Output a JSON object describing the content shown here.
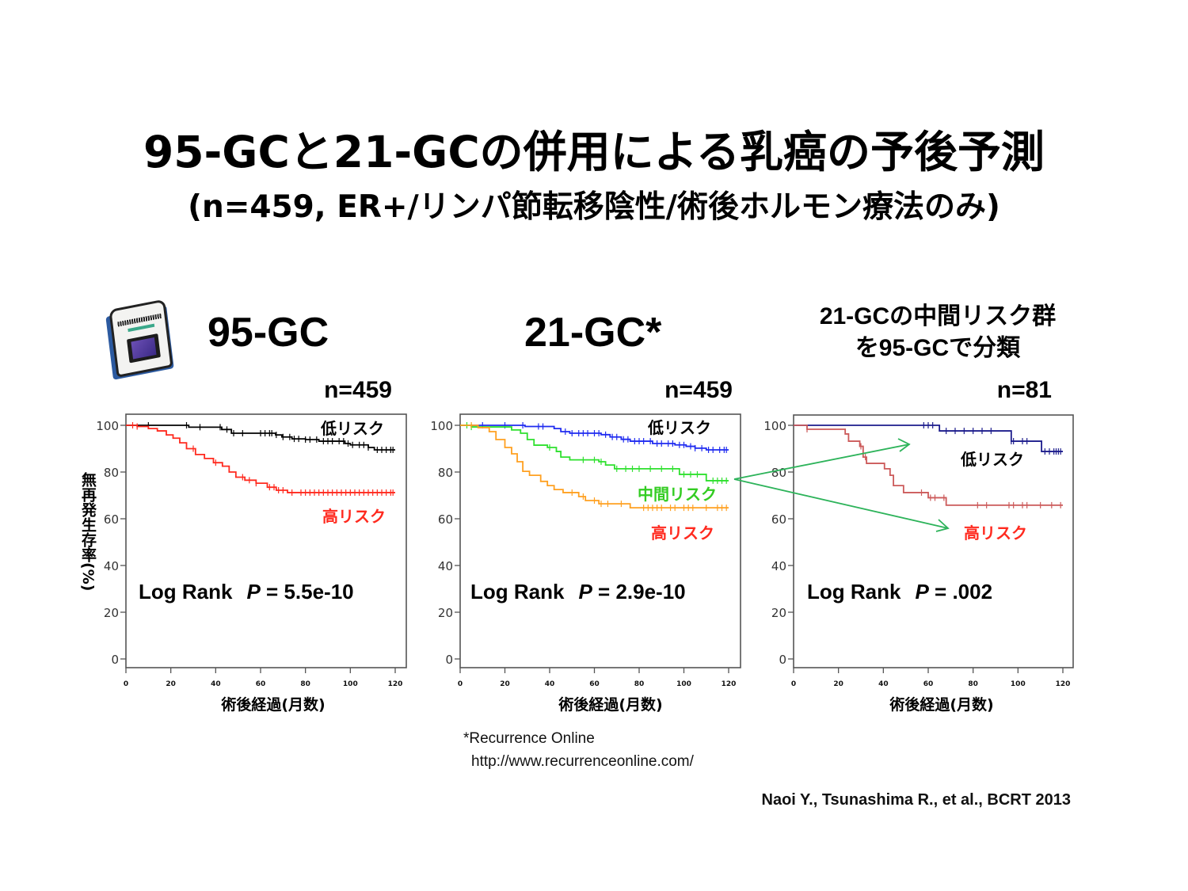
{
  "title": "95-GCと21-GCの併用による乳癌の予後予測",
  "subtitle": "(n=459, ER+/リンパ節転移陰性/術後ホルモン療法のみ)",
  "footnote": {
    "source": "*Recurrence Online",
    "url": "http://www.recurrenceonline.com/"
  },
  "citation": "Naoi Y., Tsunashima R., et al., BCRT 2013",
  "colors": {
    "arrow": "#2db35a",
    "frame": "#555555",
    "low_label": "#000000",
    "mid_label": "#33cc22",
    "high_label": "#ff2a1f"
  },
  "chart_data": [
    {
      "type": "line",
      "style": "kaplan-meier step",
      "title": "95-GC",
      "n_label": "n=459",
      "xlabel": "術後経過(月数)",
      "ylabel": "無再発生存率(%)",
      "xlim": [
        0,
        120
      ],
      "ylim": [
        0,
        100
      ],
      "xticks": [
        0,
        20,
        40,
        60,
        80,
        100,
        120
      ],
      "yticks": [
        0,
        20,
        40,
        60,
        80,
        100
      ],
      "grid": false,
      "stat_test": "Log Rank",
      "p_symbol": "P",
      "p_value": "= 5.5e-10",
      "series": [
        {
          "name": "低リスク",
          "color": "#000000",
          "label_color": "#000000",
          "points": [
            [
              0,
              100
            ],
            [
              28,
              99.2
            ],
            [
              42.7,
              98.2
            ],
            [
              47,
              96.6
            ],
            [
              66.7,
              95.9
            ],
            [
              69.5,
              95
            ],
            [
              74,
              94.2
            ],
            [
              80,
              93.9
            ],
            [
              86,
              93.2
            ],
            [
              97.6,
              92.2
            ],
            [
              100,
              91.6
            ],
            [
              108,
              90.5
            ],
            [
              110.7,
              89.5
            ],
            [
              120,
              89.5
            ]
          ],
          "censor": [
            10,
            27,
            33,
            42,
            45,
            48,
            52,
            60,
            62,
            64,
            65,
            67,
            70,
            73,
            75,
            77,
            80,
            82,
            85,
            88,
            90,
            92,
            95,
            97,
            99,
            101,
            104,
            106,
            108,
            112,
            114,
            116,
            118,
            119
          ]
        },
        {
          "name": "高リスク",
          "color": "#ff2a1f",
          "label_color": "#ff2a1f",
          "points": [
            [
              0,
              100
            ],
            [
              5,
              99.5
            ],
            [
              10,
              98.6
            ],
            [
              14,
              97.6
            ],
            [
              18,
              95.9
            ],
            [
              21,
              94.5
            ],
            [
              24,
              92.5
            ],
            [
              27,
              90
            ],
            [
              31,
              87.5
            ],
            [
              35,
              85.8
            ],
            [
              39,
              84
            ],
            [
              43,
              82.5
            ],
            [
              46,
              80
            ],
            [
              49,
              77.8
            ],
            [
              53,
              76.5
            ],
            [
              58,
              75.2
            ],
            [
              63,
              73.5
            ],
            [
              67,
              72.2
            ],
            [
              72,
              71.2
            ],
            [
              120,
              71.2
            ]
          ],
          "censor": [
            3,
            5,
            30,
            40,
            52,
            55,
            58,
            64,
            66,
            68,
            70,
            74,
            78,
            80,
            82,
            84,
            86,
            88,
            90,
            92,
            94,
            96,
            98,
            100,
            102,
            104,
            106,
            108,
            110,
            112,
            114,
            116,
            118,
            119
          ]
        }
      ]
    },
    {
      "type": "line",
      "style": "kaplan-meier step",
      "title": "21-GC*",
      "n_label": "n=459",
      "xlabel": "術後経過(月数)",
      "xlim": [
        0,
        120
      ],
      "ylim": [
        0,
        100
      ],
      "xticks": [
        0,
        20,
        40,
        60,
        80,
        100,
        120
      ],
      "yticks": [
        0,
        20,
        40,
        60,
        80,
        100
      ],
      "grid": false,
      "stat_test": "Log Rank",
      "p_symbol": "P",
      "p_value": "= 2.9e-10",
      "series": [
        {
          "name": "低リスク",
          "color": "#1f2bf0",
          "label_color": "#000000",
          "points": [
            [
              0,
              100
            ],
            [
              29,
              99.5
            ],
            [
              42,
              98.6
            ],
            [
              45,
              97.3
            ],
            [
              49,
              96.6
            ],
            [
              63,
              96
            ],
            [
              67,
              95
            ],
            [
              72,
              94
            ],
            [
              76,
              93.2
            ],
            [
              86,
              92.2
            ],
            [
              96,
              91.6
            ],
            [
              101,
              91
            ],
            [
              105,
              90.2
            ],
            [
              110,
              89.5
            ],
            [
              120,
              89.5
            ]
          ],
          "censor": [
            10,
            20,
            28,
            35,
            37,
            47,
            50,
            53,
            55,
            57,
            60,
            62,
            65,
            68,
            70,
            73,
            75,
            78,
            80,
            82,
            85,
            88,
            90,
            93,
            95,
            98,
            100,
            103,
            105,
            108,
            111,
            113,
            116,
            118,
            119
          ]
        },
        {
          "name": "中間リスク",
          "color": "#2ee02e",
          "label_color": "#33cc22",
          "points": [
            [
              0,
              100
            ],
            [
              5,
              99.3
            ],
            [
              23,
              98
            ],
            [
              27,
              96.6
            ],
            [
              30,
              93.9
            ],
            [
              33,
              91.5
            ],
            [
              39,
              90.5
            ],
            [
              43,
              88.8
            ],
            [
              45,
              86.4
            ],
            [
              49,
              85.2
            ],
            [
              62,
              84.4
            ],
            [
              65,
              83
            ],
            [
              69,
              81.4
            ],
            [
              98,
              79
            ],
            [
              110,
              76.3
            ],
            [
              120,
              76.3
            ]
          ],
          "censor": [
            3,
            5,
            40,
            55,
            60,
            63,
            70,
            74,
            77,
            80,
            85,
            90,
            95,
            100,
            103,
            106,
            113,
            115,
            117,
            119
          ]
        },
        {
          "name": "高リスク",
          "color": "#ffa020",
          "label_color": "#ff2a1f",
          "points": [
            [
              0,
              100
            ],
            [
              8,
              99
            ],
            [
              13,
              97.3
            ],
            [
              16,
              93.9
            ],
            [
              20,
              90.5
            ],
            [
              23,
              87.8
            ],
            [
              25.5,
              84.4
            ],
            [
              28,
              80.3
            ],
            [
              31,
              78.6
            ],
            [
              36,
              76
            ],
            [
              39,
              74.2
            ],
            [
              42,
              72.5
            ],
            [
              46,
              71.2
            ],
            [
              53,
              69.5
            ],
            [
              56,
              67.8
            ],
            [
              62,
              66.4
            ],
            [
              76,
              64.7
            ],
            [
              120,
              64.7
            ]
          ],
          "censor": [
            5,
            50,
            55,
            60,
            63,
            66,
            72,
            82,
            84,
            86,
            88,
            90,
            94,
            96,
            100,
            102,
            104,
            110,
            115,
            117,
            119
          ]
        }
      ]
    },
    {
      "type": "line",
      "style": "kaplan-meier step",
      "title_lines": [
        "21-GCの中間リスク群",
        "を95-GCで分類"
      ],
      "n_label": "n=81",
      "xlabel": "術後経過(月数)",
      "xlim": [
        0,
        120
      ],
      "ylim": [
        0,
        100
      ],
      "xticks": [
        0,
        20,
        40,
        60,
        80,
        100,
        120
      ],
      "yticks": [
        0,
        20,
        40,
        60,
        80,
        100
      ],
      "grid": false,
      "stat_test": "Log Rank",
      "p_symbol": "P",
      "p_value": "= .002",
      "series": [
        {
          "name": "低リスク",
          "color": "#1c1c8c",
          "label_color": "#000000",
          "points": [
            [
              0,
              100
            ],
            [
              65,
              97.6
            ],
            [
              97,
              93.2
            ],
            [
              110.5,
              88.8
            ],
            [
              120,
              88.8
            ]
          ],
          "censor": [
            58,
            60,
            62,
            68,
            72,
            76,
            80,
            84,
            88,
            97,
            98,
            102,
            104,
            112,
            114,
            116,
            117,
            118,
            119
          ]
        },
        {
          "name": "高リスク",
          "color": "#cc5a5a",
          "label_color": "#ff2a1f",
          "points": [
            [
              0,
              100
            ],
            [
              6,
              98.3
            ],
            [
              23,
              96.3
            ],
            [
              24.5,
              93.2
            ],
            [
              29.5,
              91
            ],
            [
              31,
              86.4
            ],
            [
              32.5,
              83.7
            ],
            [
              40.5,
              81.4
            ],
            [
              43,
              78.6
            ],
            [
              44.5,
              74.2
            ],
            [
              49,
              71.2
            ],
            [
              60,
              69
            ],
            [
              68,
              65.8
            ],
            [
              120,
              65.8
            ]
          ],
          "censor": [
            6,
            30,
            32,
            57,
            61,
            63,
            67,
            82,
            86,
            96,
            98,
            102,
            104,
            110,
            115,
            119
          ]
        }
      ]
    }
  ]
}
